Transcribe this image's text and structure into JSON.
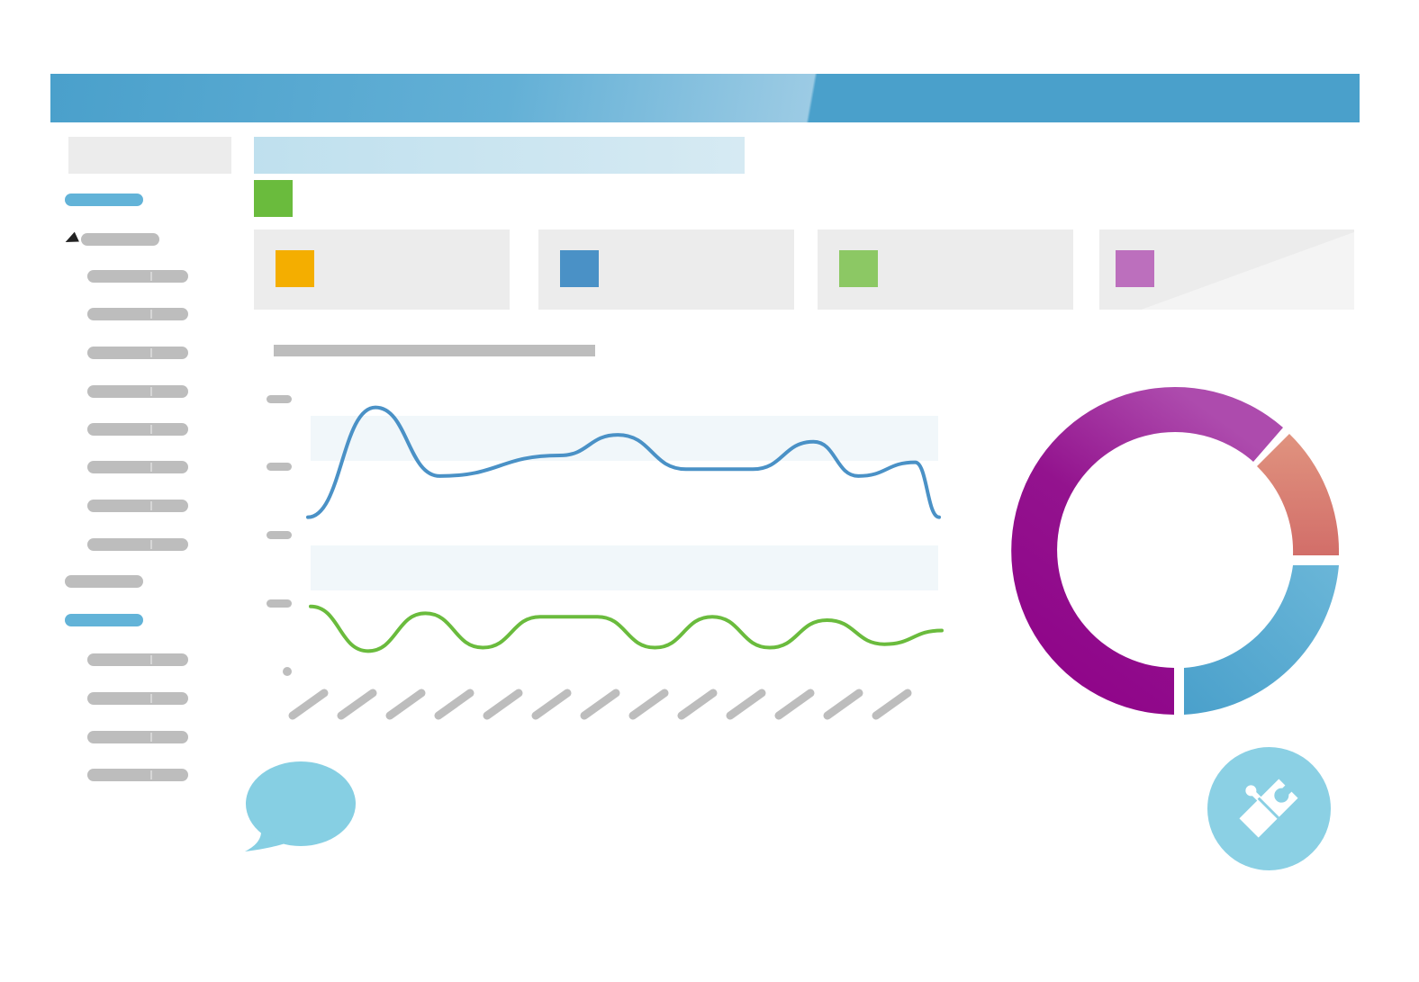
{
  "colors": {
    "header": "#4aa0cb",
    "accent_blue": "#62b3d8",
    "placeholder_grey": "#bdbdbd",
    "card_bg": "#ececec",
    "title_chip_green": "#6abb3d",
    "stat_swatches": [
      "#f4ae00",
      "#4a91c6",
      "#8cc864",
      "#bc6fbd"
    ],
    "line_blue": "#4a91c6",
    "line_green": "#6abb3d",
    "bubble": "#86cfe3"
  },
  "icons": {
    "caret": "caret-left-icon",
    "chat": "chat-bubble-icon",
    "puzzle": "puzzle-piece-icon"
  },
  "sidebar": {
    "groups": [
      {
        "state": "active",
        "children": 0
      },
      {
        "state": "expanded",
        "children": 8
      },
      {
        "state": "collapsed",
        "children": 0
      },
      {
        "state": "active",
        "children": 4
      }
    ]
  },
  "chart_data": {
    "type": "line",
    "title": "",
    "xlabel": "",
    "ylabel": "",
    "ylim": [
      0,
      4
    ],
    "y_ticks": [
      "",
      "",
      "",
      "",
      ""
    ],
    "x_tick_count": 13,
    "series": [
      {
        "name": "blue",
        "color": "#4a91c6",
        "points": [
          [
            0,
            2.3
          ],
          [
            1,
            3.9
          ],
          [
            2,
            2.9
          ],
          [
            3,
            3.2
          ],
          [
            4,
            3.5
          ],
          [
            5,
            3.0
          ],
          [
            6,
            3.0
          ],
          [
            7,
            3.4
          ],
          [
            8,
            2.9
          ],
          [
            9,
            3.1
          ],
          [
            10,
            2.3
          ]
        ],
        "x": [
          0,
          1.07,
          2.09,
          3.99,
          4.91,
          5.99,
          7.05,
          8.01,
          8.72,
          9.62,
          10.0
        ]
      },
      {
        "name": "green",
        "color": "#6abb3d",
        "points": [
          [
            0,
            1.0
          ],
          [
            1,
            0.35
          ],
          [
            2,
            0.9
          ],
          [
            3,
            0.4
          ],
          [
            4,
            0.85
          ],
          [
            5,
            0.85
          ],
          [
            6,
            0.4
          ],
          [
            7,
            0.85
          ],
          [
            8,
            0.4
          ],
          [
            9,
            0.8
          ],
          [
            10,
            0.45
          ],
          [
            11,
            0.65
          ]
        ]
      }
    ]
  },
  "donut_data": {
    "type": "pie",
    "slices": [
      {
        "name": "purple",
        "value": 62.5,
        "color": "#8e0f8c"
      },
      {
        "name": "salmon",
        "value": 12.5,
        "color": "#d9776c"
      },
      {
        "name": "blue",
        "value": 25,
        "color": "#5aa9d3"
      }
    ]
  }
}
